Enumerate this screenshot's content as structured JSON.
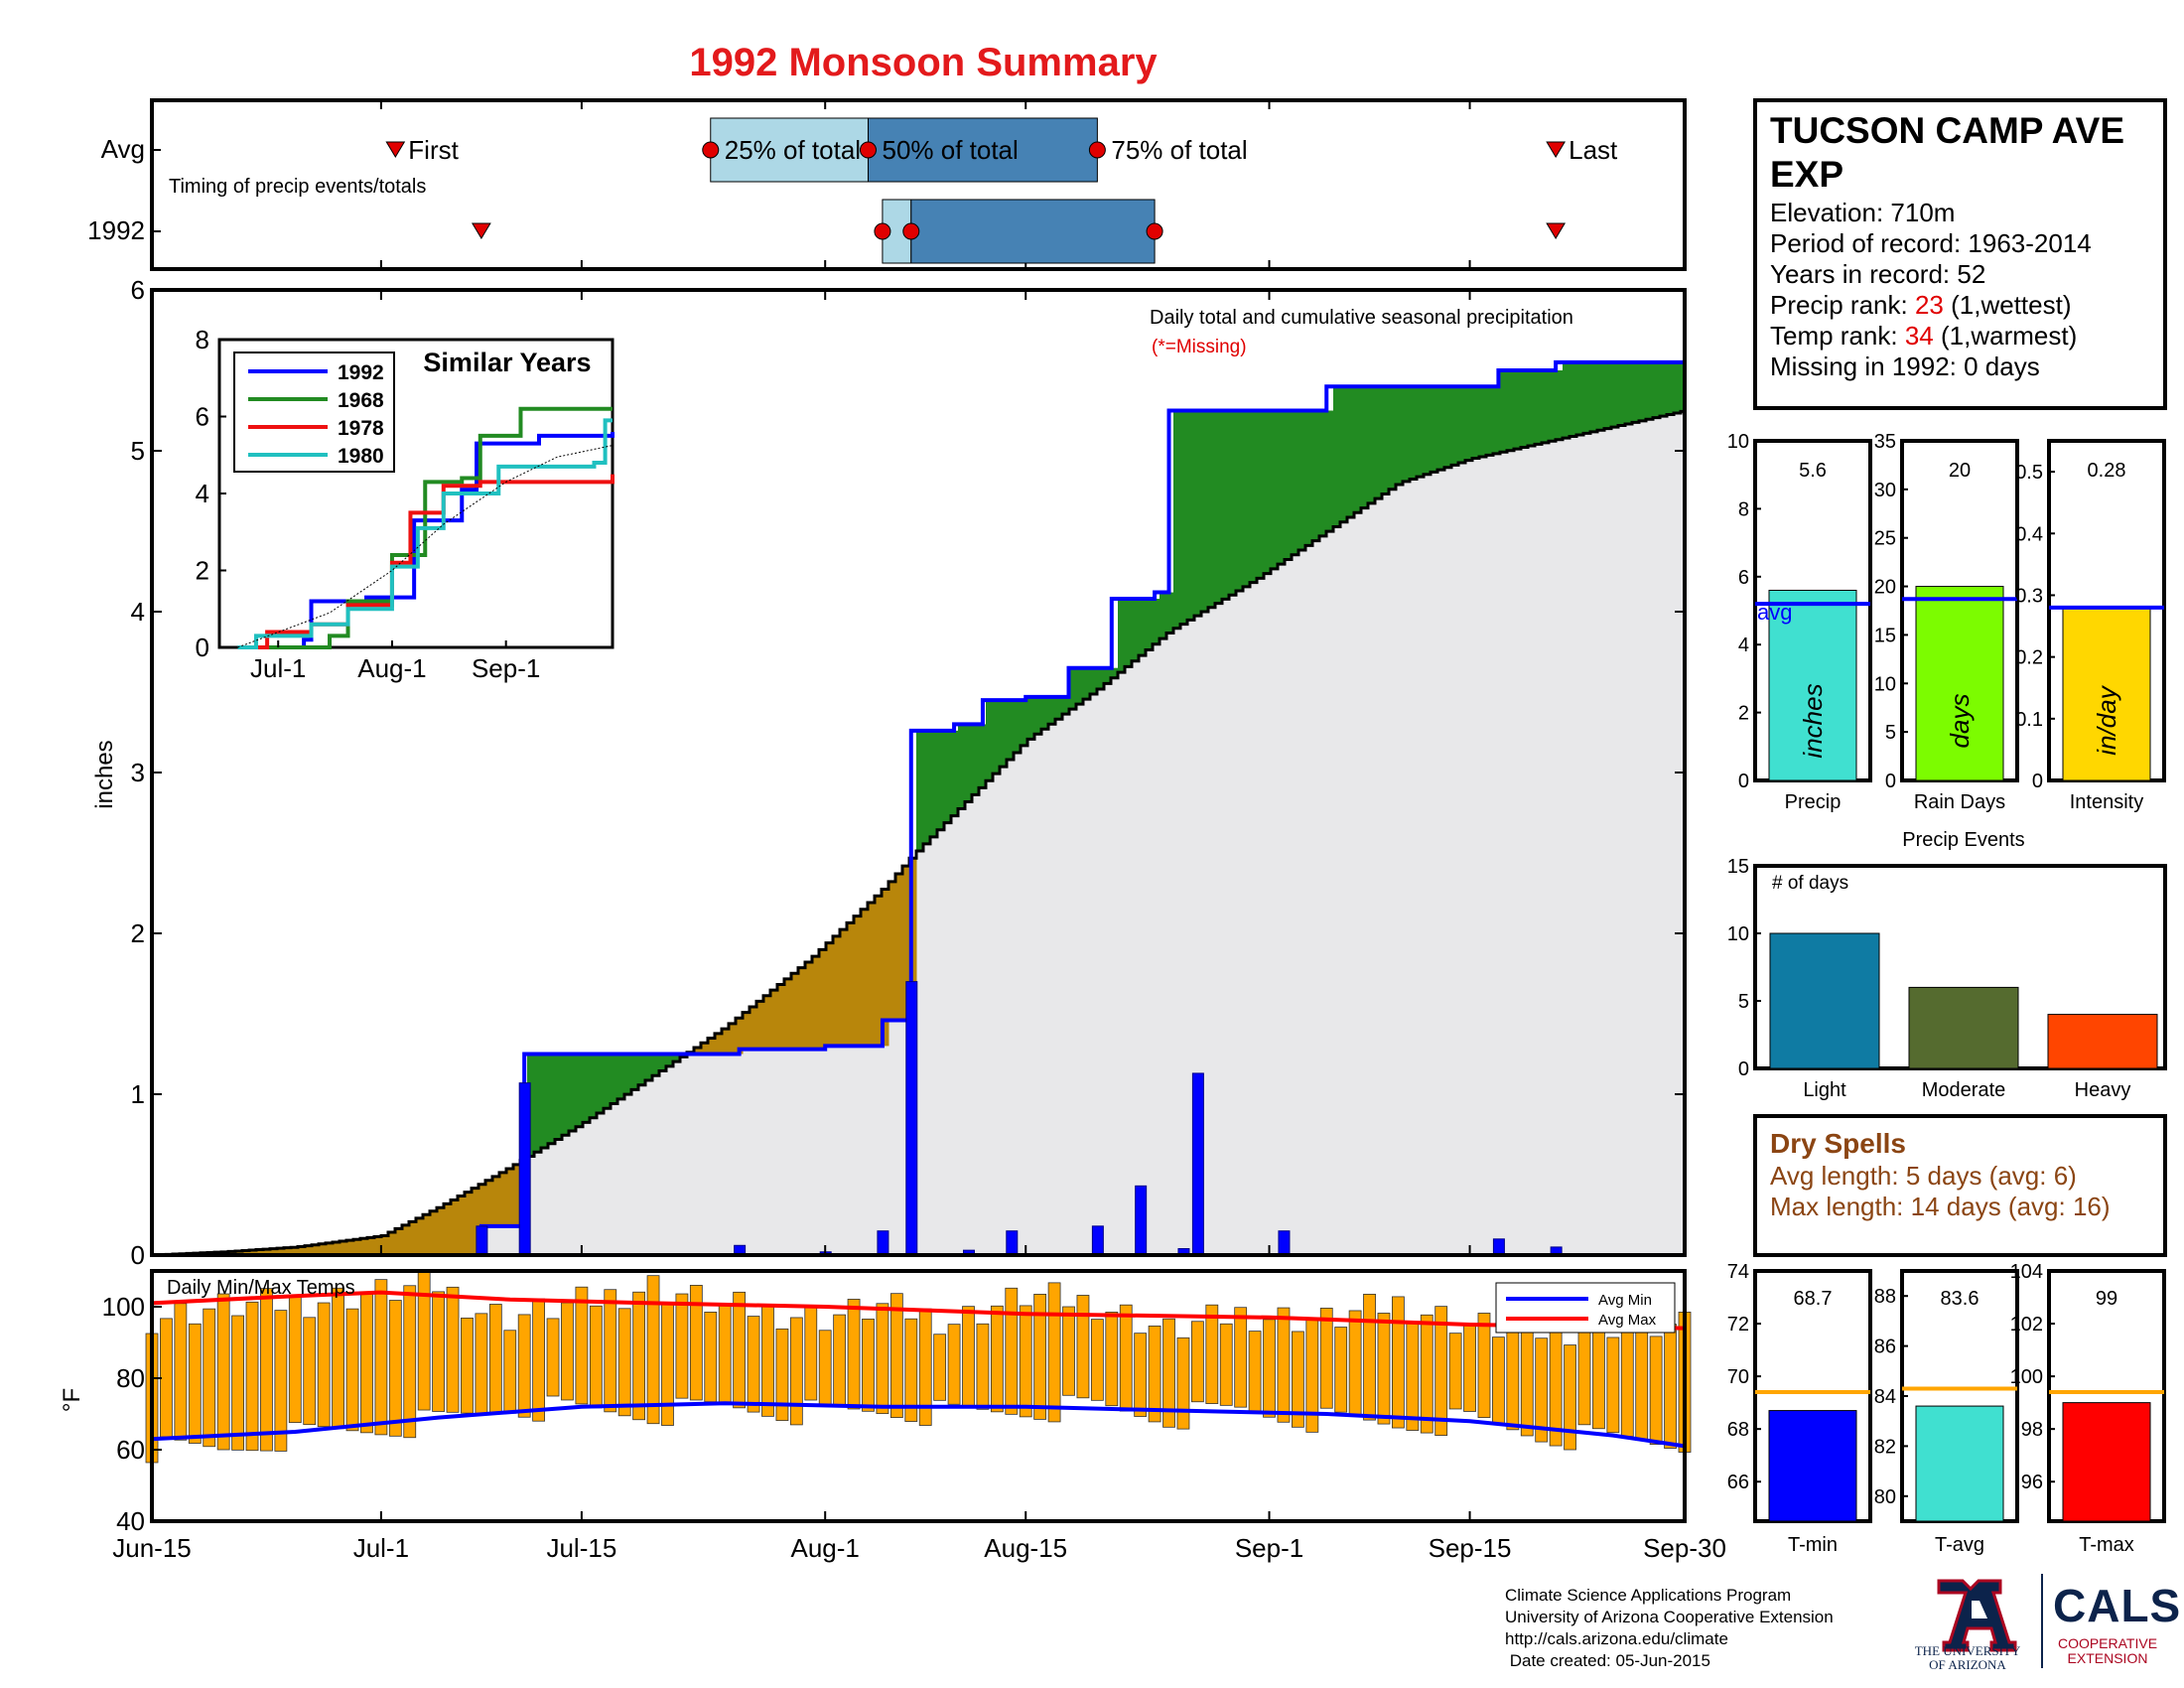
{
  "title": "1992 Monsoon Summary",
  "colors": {
    "title": "#e31a1c",
    "current_year": "#0000ff",
    "above_avg": "#228b22",
    "below_avg": "#b8860b",
    "avg_fill": "#e8e8ea",
    "marker": "#e00000",
    "quartile_light": "#add8e6",
    "quartile_dark": "#4682b4",
    "dry_spells": "#8b4513",
    "temp_bar": "#ffa500"
  },
  "station": {
    "name_line1": "TUCSON CAMP AVE",
    "name_line2": "EXP",
    "elevation": "Elevation: 710m",
    "period": "Period of record: 1963-2014",
    "years": "Years in record: 52",
    "precip_rank_label": "Precip rank:",
    "precip_rank_value": "23",
    "precip_rank_note": "(1,wettest)",
    "temp_rank_label": "Temp rank:",
    "temp_rank_value": "34",
    "temp_rank_note": "(1,warmest)",
    "missing": "Missing in 1992: 0 days"
  },
  "timing": {
    "row_labels": [
      "Avg",
      "1992"
    ],
    "subtitle": "Timing of precip events/totals",
    "labels": {
      "first": "First",
      "p25": "25% of total",
      "p50": "50% of total",
      "p75": "75% of total",
      "last": "Last"
    },
    "avg": {
      "first": "2015-07-02",
      "p25": "2015-07-24",
      "p50": "2015-08-04",
      "p75": "2015-08-20",
      "last": "2015-09-21"
    },
    "year": {
      "first": "2015-07-08",
      "p25": "2015-08-05",
      "p50": "2015-08-07",
      "p75": "2015-08-24",
      "last": "2015-09-21"
    }
  },
  "main_chart": {
    "annotation": "Daily total and cumulative seasonal precipitation",
    "missing_note": "(*=Missing)",
    "ylabel": "inches",
    "ylim": [
      0,
      6
    ],
    "yticks": [
      0,
      1,
      2,
      3,
      4,
      5,
      6
    ],
    "xlim": [
      "2015-06-15",
      "2015-09-30"
    ],
    "xticks": [
      "Jun-15",
      "Jul-1",
      "Jul-15",
      "Aug-1",
      "Aug-15",
      "Sep-1",
      "Sep-15",
      "Sep-30"
    ]
  },
  "inset": {
    "title": "Similar Years",
    "ylim": [
      0,
      8
    ],
    "yticks": [
      0,
      2,
      4,
      6,
      8
    ],
    "xticks": [
      "Jul-1",
      "Aug-1",
      "Sep-1"
    ],
    "legend": [
      "1992",
      "1968",
      "1978",
      "1980"
    ]
  },
  "stat_panels": [
    {
      "label": "Precip",
      "value": "5.6",
      "unit": "inches",
      "avg_label": "avg",
      "ylim": [
        0,
        10
      ],
      "yticks": [
        "0",
        "2",
        "4",
        "6",
        "8",
        "10"
      ],
      "bar_value": 5.6,
      "avg_value": 5.2,
      "color": "#40e0d0"
    },
    {
      "label": "Rain Days",
      "value": "20",
      "unit": "days",
      "ylim": [
        0,
        35
      ],
      "yticks": [
        "0",
        "5",
        "10",
        "15",
        "20",
        "25",
        "30",
        "35"
      ],
      "bar_value": 20,
      "avg_value": 18.7,
      "color": "#7cfc00"
    },
    {
      "label": "Intensity",
      "value": "0.28",
      "unit": "in/day",
      "ylim": [
        0,
        0.55
      ],
      "yticks": [
        "0",
        "0.1",
        "0.2",
        "0.3",
        "0.4",
        "0.5"
      ],
      "bar_value": 0.28,
      "avg_value": 0.28,
      "color": "#ffd700"
    }
  ],
  "precip_events": {
    "title": "Precip Events",
    "ylabel": "# of days",
    "ylim": [
      0,
      15
    ],
    "yticks": [
      "0",
      "5",
      "10",
      "15"
    ],
    "categories": [
      "Light",
      "Moderate",
      "Heavy"
    ],
    "values": [
      10,
      6,
      4
    ],
    "colors": [
      "#0f7ba3",
      "#556b2f",
      "#ff4500"
    ]
  },
  "dry_spells": {
    "title": "Dry Spells",
    "avg_length": "Avg length: 5 days (avg: 6)",
    "max_length": "Max length: 14 days (avg: 16)"
  },
  "temp_chart": {
    "title": "Daily Min/Max Temps",
    "ylabel": "°F",
    "ylim": [
      40,
      110
    ],
    "yticks": [
      40,
      60,
      80,
      100
    ],
    "legend": [
      "Avg Min",
      "Avg Max"
    ]
  },
  "temp_panels": [
    {
      "label": "T-min",
      "value": "68.7",
      "ylim": [
        64.5,
        74
      ],
      "yticks": [
        "66",
        "68",
        "70",
        "72",
        "74"
      ],
      "bar_value": 68.7,
      "avg_value": 69.4,
      "color": "#0000ff"
    },
    {
      "label": "T-avg",
      "value": "83.6",
      "ylim": [
        79,
        89
      ],
      "yticks": [
        "80",
        "82",
        "84",
        "86",
        "88"
      ],
      "bar_value": 83.6,
      "avg_value": 84.3,
      "color": "#40e0d0"
    },
    {
      "label": "T-max",
      "value": "99",
      "ylim": [
        94.5,
        104
      ],
      "yticks": [
        "96",
        "98",
        "100",
        "102",
        "104"
      ],
      "bar_value": 99,
      "avg_value": 99.4,
      "color": "#ff0000"
    }
  ],
  "footer": {
    "line1": "Climate Science Applications Program",
    "line2": "University of Arizona Cooperative Extension",
    "line3": "http://cals.arizona.edu/climate",
    "line4": " Date created: 05-Jun-2015",
    "ua_logo_text": "THE UNIVERSITY OF ARIZONA",
    "cals_logo_text": "CALS",
    "cals_sub": "COOPERATIVE EXTENSION"
  },
  "chart_data": [
    {
      "type": "area",
      "title": "Daily total and cumulative seasonal precipitation",
      "ylabel": "inches",
      "ylim": [
        0,
        6
      ],
      "series": [
        {
          "name": "1992",
          "kind": "cumulative",
          "points": [
            [
              "2015-06-15",
              0
            ],
            [
              "2015-07-07",
              0
            ],
            [
              "2015-07-08",
              0.18
            ],
            [
              "2015-07-10",
              0.18
            ],
            [
              "2015-07-11",
              1.25
            ],
            [
              "2015-07-25",
              1.25
            ],
            [
              "2015-07-26",
              1.28
            ],
            [
              "2015-07-31",
              1.28
            ],
            [
              "2015-08-01",
              1.3
            ],
            [
              "2015-08-04",
              1.3
            ],
            [
              "2015-08-05",
              1.46
            ],
            [
              "2015-08-06",
              1.46
            ],
            [
              "2015-08-07",
              3.26
            ],
            [
              "2015-08-10",
              3.3
            ],
            [
              "2015-08-12",
              3.45
            ],
            [
              "2015-08-15",
              3.47
            ],
            [
              "2015-08-18",
              3.65
            ],
            [
              "2015-08-21",
              4.08
            ],
            [
              "2015-08-24",
              4.12
            ],
            [
              "2015-08-25",
              5.25
            ],
            [
              "2015-09-05",
              5.4
            ],
            [
              "2015-09-17",
              5.5
            ],
            [
              "2015-09-21",
              5.55
            ],
            [
              "2015-09-30",
              5.58
            ]
          ]
        },
        {
          "name": "Avg",
          "kind": "cumulative",
          "points": [
            [
              "2015-06-15",
              0
            ],
            [
              "2015-06-20",
              0.02
            ],
            [
              "2015-06-25",
              0.05
            ],
            [
              "2015-07-01",
              0.12
            ],
            [
              "2015-07-05",
              0.3
            ],
            [
              "2015-07-10",
              0.55
            ],
            [
              "2015-07-15",
              0.82
            ],
            [
              "2015-07-20",
              1.12
            ],
            [
              "2015-07-25",
              1.42
            ],
            [
              "2015-07-31",
              1.85
            ],
            [
              "2015-08-05",
              2.28
            ],
            [
              "2015-08-07",
              2.48
            ],
            [
              "2015-08-10",
              2.75
            ],
            [
              "2015-08-15",
              3.2
            ],
            [
              "2015-08-20",
              3.52
            ],
            [
              "2015-08-25",
              3.88
            ],
            [
              "2015-08-31",
              4.2
            ],
            [
              "2015-09-05",
              4.5
            ],
            [
              "2015-09-10",
              4.8
            ],
            [
              "2015-09-15",
              4.95
            ],
            [
              "2015-09-20",
              5.05
            ],
            [
              "2015-09-25",
              5.15
            ],
            [
              "2015-09-30",
              5.25
            ]
          ]
        },
        {
          "name": "Daily",
          "kind": "bars",
          "points": [
            [
              "2015-07-08",
              0.18
            ],
            [
              "2015-07-11",
              1.07
            ],
            [
              "2015-07-26",
              0.06
            ],
            [
              "2015-08-01",
              0.02
            ],
            [
              "2015-08-05",
              0.15
            ],
            [
              "2015-08-07",
              1.7
            ],
            [
              "2015-08-11",
              0.03
            ],
            [
              "2015-08-14",
              0.15
            ],
            [
              "2015-08-20",
              0.18
            ],
            [
              "2015-08-23",
              0.43
            ],
            [
              "2015-08-26",
              0.04
            ],
            [
              "2015-08-27",
              1.13
            ],
            [
              "2015-09-02",
              0.15
            ],
            [
              "2015-09-17",
              0.1
            ],
            [
              "2015-09-21",
              0.05
            ]
          ]
        }
      ]
    },
    {
      "type": "line",
      "title": "Similar Years",
      "ylim": [
        0,
        8
      ],
      "series": [
        {
          "name": "1992",
          "points": [
            [
              "2015-06-20",
              0
            ],
            [
              "2015-07-08",
              0.2
            ],
            [
              "2015-07-10",
              1.2
            ],
            [
              "2015-07-25",
              1.3
            ],
            [
              "2015-08-07",
              3.3
            ],
            [
              "2015-08-20",
              4.1
            ],
            [
              "2015-08-24",
              5.3
            ],
            [
              "2015-09-10",
              5.5
            ],
            [
              "2015-09-30",
              5.6
            ]
          ]
        },
        {
          "name": "1968",
          "points": [
            [
              "2015-06-20",
              0
            ],
            [
              "2015-07-15",
              0.3
            ],
            [
              "2015-07-20",
              1.2
            ],
            [
              "2015-08-01",
              2.4
            ],
            [
              "2015-08-10",
              4.3
            ],
            [
              "2015-08-20",
              4.4
            ],
            [
              "2015-08-25",
              5.5
            ],
            [
              "2015-09-05",
              6.2
            ],
            [
              "2015-09-30",
              6.2
            ]
          ]
        },
        {
          "name": "1978",
          "points": [
            [
              "2015-06-20",
              0
            ],
            [
              "2015-06-28",
              0.4
            ],
            [
              "2015-07-10",
              0.6
            ],
            [
              "2015-07-20",
              1.1
            ],
            [
              "2015-08-01",
              2.2
            ],
            [
              "2015-08-06",
              3.5
            ],
            [
              "2015-08-15",
              4.2
            ],
            [
              "2015-08-25",
              4.3
            ],
            [
              "2015-09-30",
              4.5
            ]
          ]
        },
        {
          "name": "1980",
          "points": [
            [
              "2015-06-20",
              0
            ],
            [
              "2015-06-25",
              0.3
            ],
            [
              "2015-07-10",
              0.6
            ],
            [
              "2015-07-20",
              1.0
            ],
            [
              "2015-08-01",
              2.1
            ],
            [
              "2015-08-08",
              3.1
            ],
            [
              "2015-08-15",
              4.0
            ],
            [
              "2015-08-30",
              4.7
            ],
            [
              "2015-09-25",
              4.8
            ],
            [
              "2015-09-28",
              5.9
            ],
            [
              "2015-09-30",
              5.9
            ]
          ]
        },
        {
          "name": "Avg",
          "points": [
            [
              "2015-06-20",
              0
            ],
            [
              "2015-07-15",
              0.9
            ],
            [
              "2015-08-01",
              2.0
            ],
            [
              "2015-08-15",
              3.2
            ],
            [
              "2015-09-01",
              4.3
            ],
            [
              "2015-09-15",
              4.95
            ],
            [
              "2015-09-30",
              5.25
            ]
          ]
        }
      ]
    },
    {
      "type": "bar",
      "title": "Daily Min/Max Temps",
      "ylabel": "°F",
      "ylim": [
        40,
        110
      ],
      "series": [
        {
          "name": "Avg Min",
          "points": [
            [
              "2015-06-15",
              63
            ],
            [
              "2015-06-25",
              65
            ],
            [
              "2015-07-05",
              69
            ],
            [
              "2015-07-15",
              72
            ],
            [
              "2015-07-25",
              73
            ],
            [
              "2015-08-05",
              72
            ],
            [
              "2015-08-15",
              72
            ],
            [
              "2015-08-25",
              71
            ],
            [
              "2015-09-05",
              70
            ],
            [
              "2015-09-15",
              68
            ],
            [
              "2015-09-25",
              64
            ],
            [
              "2015-09-30",
              61
            ]
          ]
        },
        {
          "name": "Avg Max",
          "points": [
            [
              "2015-06-15",
              101
            ],
            [
              "2015-06-25",
              103
            ],
            [
              "2015-07-01",
              104
            ],
            [
              "2015-07-10",
              102
            ],
            [
              "2015-07-20",
              101
            ],
            [
              "2015-08-01",
              100
            ],
            [
              "2015-08-15",
              98
            ],
            [
              "2015-09-01",
              97
            ],
            [
              "2015-09-15",
              95
            ],
            [
              "2015-09-30",
              94
            ]
          ]
        },
        {
          "name": "Daily Range (min-max)",
          "points": [
            [
              "2015-06-15",
              [
                60,
                97
              ]
            ],
            [
              "2015-06-20",
              [
                60,
                100
              ]
            ],
            [
              "2015-06-25",
              [
                64,
                101
              ]
            ],
            [
              "2015-07-01",
              [
                66,
                104
              ]
            ],
            [
              "2015-07-05",
              [
                68,
                106
              ]
            ],
            [
              "2015-07-08",
              [
                70,
                99
              ]
            ],
            [
              "2015-07-10",
              [
                72,
                97
              ]
            ],
            [
              "2015-07-15",
              [
                71,
                101
              ]
            ],
            [
              "2015-07-20",
              [
                70,
                106
              ]
            ],
            [
              "2015-07-25",
              [
                72,
                100
              ]
            ],
            [
              "2015-08-01",
              [
                70,
                97
              ]
            ],
            [
              "2015-08-05",
              [
                71,
                100
              ]
            ],
            [
              "2015-08-10",
              [
                70,
                96
              ]
            ],
            [
              "2015-08-15",
              [
                71,
                103
              ]
            ],
            [
              "2015-08-20",
              [
                72,
                101
              ]
            ],
            [
              "2015-08-25",
              [
                69,
                93
              ]
            ],
            [
              "2015-08-30",
              [
                71,
                98
              ]
            ],
            [
              "2015-09-05",
              [
                68,
                96
              ]
            ],
            [
              "2015-09-10",
              [
                67,
                101
              ]
            ],
            [
              "2015-09-15",
              [
                68,
                95
              ]
            ],
            [
              "2015-09-20",
              [
                64,
                93
              ]
            ],
            [
              "2015-09-25",
              [
                63,
                95
              ]
            ],
            [
              "2015-09-30",
              [
                62,
                94
              ]
            ]
          ]
        }
      ]
    },
    {
      "type": "bar",
      "title": "Precip Events",
      "categories": [
        "Light",
        "Moderate",
        "Heavy"
      ],
      "values": [
        10,
        6,
        4
      ],
      "ylim": [
        0,
        15
      ]
    }
  ]
}
